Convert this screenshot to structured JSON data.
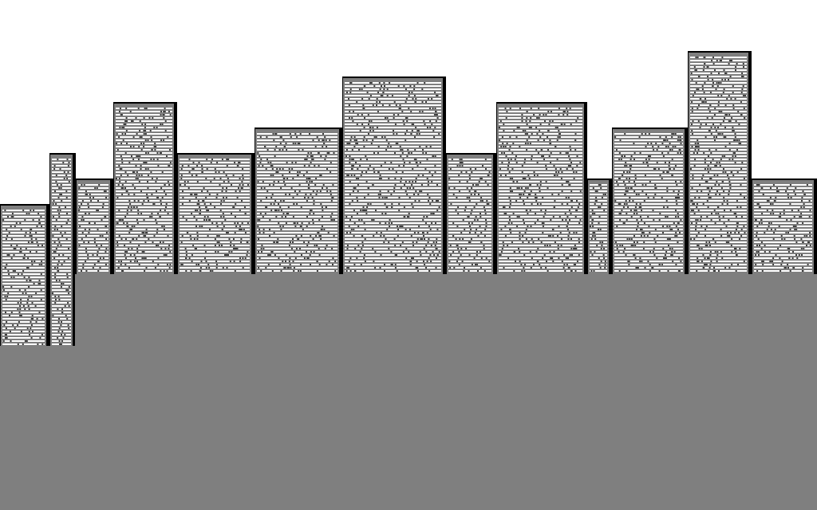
{
  "scene": {
    "name": "city-skyline",
    "sky_color": "#ffffff",
    "ground_color": "#7f7f7f",
    "building_face_color": "#7f7f7f",
    "building_shadow_color": "#000000",
    "window_light_color": "#ffffff",
    "window_dark_color": "#3c3c3c"
  }
}
